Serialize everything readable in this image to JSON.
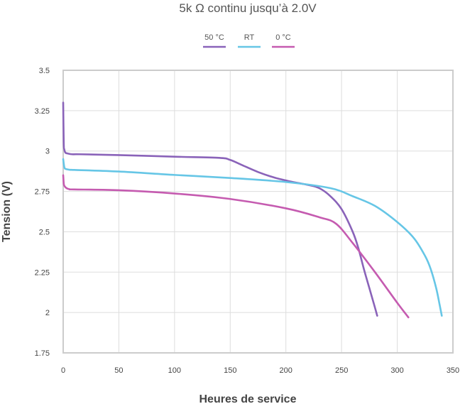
{
  "chart_data": {
    "type": "line",
    "title": "5k Ω continu jusqu’à 2.0V",
    "xlabel": "Heures de service",
    "ylabel": "Tension (V)",
    "xlim": [
      0,
      350
    ],
    "ylim": [
      1.75,
      3.5
    ],
    "xticks": [
      0,
      50,
      100,
      150,
      200,
      250,
      300,
      350
    ],
    "yticks": [
      1.75,
      2,
      2.25,
      2.5,
      2.75,
      3,
      3.25,
      3.5
    ],
    "ytick_labels": [
      "1.75",
      "2",
      "2.25",
      "2.5",
      "2.75",
      "3",
      "3.25",
      "3.5"
    ],
    "grid": true,
    "legend_position": "top-center",
    "series": [
      {
        "name": "50 °C",
        "color": "#8a63b9",
        "x": [
          0,
          0.5,
          1,
          2,
          4,
          8,
          15,
          50,
          100,
          140,
          150,
          160,
          175,
          190,
          205,
          220,
          230,
          240,
          250,
          260,
          265,
          270,
          275,
          280,
          282
        ],
        "y": [
          3.3,
          3.05,
          3.01,
          2.99,
          2.985,
          2.98,
          2.98,
          2.975,
          2.965,
          2.958,
          2.945,
          2.915,
          2.87,
          2.835,
          2.81,
          2.79,
          2.77,
          2.72,
          2.64,
          2.5,
          2.4,
          2.27,
          2.15,
          2.03,
          1.98
        ]
      },
      {
        "name": "RT",
        "color": "#66c6e6",
        "x": [
          0,
          1,
          2,
          5,
          10,
          50,
          100,
          150,
          200,
          240,
          260,
          280,
          300,
          315,
          325,
          330,
          335,
          338,
          340
        ],
        "y": [
          2.95,
          2.9,
          2.89,
          2.885,
          2.883,
          2.873,
          2.852,
          2.833,
          2.808,
          2.77,
          2.72,
          2.66,
          2.56,
          2.46,
          2.35,
          2.27,
          2.15,
          2.05,
          1.98
        ]
      },
      {
        "name": "0 °C",
        "color": "#c55bb0",
        "x": [
          0,
          0.5,
          1,
          3,
          6,
          10,
          50,
          100,
          150,
          200,
          230,
          245,
          260,
          280,
          300,
          310
        ],
        "y": [
          2.85,
          2.8,
          2.785,
          2.77,
          2.763,
          2.762,
          2.757,
          2.737,
          2.703,
          2.645,
          2.59,
          2.55,
          2.43,
          2.25,
          2.06,
          1.97
        ]
      }
    ]
  }
}
